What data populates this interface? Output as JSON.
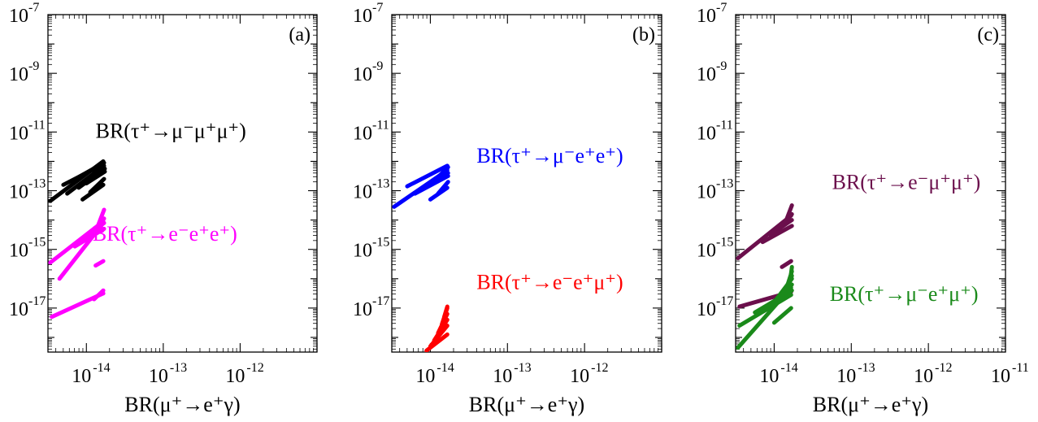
{
  "chart_data": [
    {
      "type": "line",
      "panel_label": "(a)",
      "xlabel": "BR(μ⁺→e⁺γ)",
      "ylabel": "",
      "x_log_range": [
        -14.5,
        -11.0
      ],
      "y_log_range": [
        -18.5,
        -7.0
      ],
      "x_tick_exponents": [
        -14,
        -13,
        -12,
        -11
      ],
      "x_tick_labels": [
        "10",
        "10",
        "10",
        "10"
      ],
      "x_tick_label_visible": [
        true,
        true,
        true,
        false
      ],
      "x_tick_exp_labels": [
        "-14",
        "-13",
        "-12",
        ""
      ],
      "x_tick_label_clipped": [
        false,
        false,
        false,
        true
      ],
      "y_tick_exponents": [
        -17,
        -15,
        -13,
        -11,
        -9,
        -7
      ],
      "y_tick_labels": [
        "10",
        "10",
        "10",
        "10",
        "10",
        "10"
      ],
      "y_tick_exp_labels": [
        "-17",
        "-15",
        "-13",
        "-11",
        "-9",
        "-7"
      ],
      "series": [
        {
          "name": "BR(τ⁺→μ⁻μ⁺μ⁺)",
          "color": "#000000",
          "segments": [
            [
              [
                -14.47,
                -13.35
              ],
              [
                -13.78,
                -12.0
              ]
            ],
            [
              [
                -14.25,
                -13.1
              ],
              [
                -13.77,
                -12.15
              ]
            ],
            [
              [
                -14.1,
                -12.9
              ],
              [
                -13.76,
                -12.25
              ]
            ],
            [
              [
                -14.0,
                -12.75
              ],
              [
                -13.76,
                -12.35
              ]
            ],
            [
              [
                -14.18,
                -12.65
              ],
              [
                -13.77,
                -12.05
              ]
            ],
            [
              [
                -14.3,
                -12.8
              ],
              [
                -13.78,
                -12.1
              ]
            ],
            [
              [
                -14.05,
                -13.3
              ],
              [
                -13.78,
                -12.8
              ]
            ],
            [
              [
                -13.95,
                -13.05
              ],
              [
                -13.77,
                -12.6
              ]
            ]
          ],
          "label_x": -13.88,
          "label_y": -11.2
        },
        {
          "name": "BR(τ⁺→e⁻e⁺e⁺)",
          "color": "#ff00ff",
          "segments": [
            [
              [
                -14.47,
                -15.45
              ],
              [
                -13.78,
                -14.05
              ]
            ],
            [
              [
                -14.15,
                -14.9
              ],
              [
                -13.77,
                -14.3
              ]
            ],
            [
              [
                -14.05,
                -14.65
              ],
              [
                -13.77,
                -14.1
              ]
            ],
            [
              [
                -13.95,
                -14.5
              ],
              [
                -13.77,
                -13.95
              ]
            ],
            [
              [
                -13.85,
                -14.2
              ],
              [
                -13.77,
                -13.65
              ]
            ],
            [
              [
                -14.35,
                -16.0
              ],
              [
                -13.78,
                -14.1
              ]
            ],
            [
              [
                -13.88,
                -15.55
              ],
              [
                -13.78,
                -15.4
              ]
            ],
            [
              [
                -14.45,
                -17.3
              ],
              [
                -13.78,
                -16.5
              ]
            ],
            [
              [
                -13.9,
                -16.7
              ],
              [
                -13.78,
                -16.4
              ]
            ]
          ],
          "label_x": -13.92,
          "label_y": -14.7
        }
      ]
    },
    {
      "type": "line",
      "panel_label": "(b)",
      "xlabel": "BR(μ⁺→e⁺γ)",
      "ylabel": "",
      "x_log_range": [
        -14.5,
        -11.0
      ],
      "y_log_range": [
        -18.5,
        -7.0
      ],
      "x_tick_exponents": [
        -14,
        -13,
        -12,
        -11
      ],
      "x_tick_labels": [
        "10",
        "10",
        "10",
        "10"
      ],
      "x_tick_label_visible": [
        true,
        true,
        true,
        false
      ],
      "x_tick_exp_labels": [
        "-14",
        "-13",
        "-12",
        ""
      ],
      "x_tick_label_clipped": [
        false,
        false,
        false,
        true
      ],
      "y_tick_exponents": [
        -17,
        -15,
        -13,
        -11,
        -9,
        -7
      ],
      "y_tick_labels": [
        "10",
        "10",
        "10",
        "10",
        "10",
        "10"
      ],
      "y_tick_exp_labels": [
        "-17",
        "-15",
        "-13",
        "-11",
        "-9",
        "-7"
      ],
      "series": [
        {
          "name": "BR(τ⁺→μ⁻e⁺e⁺)",
          "color": "#0000ff",
          "segments": [
            [
              [
                -14.47,
                -13.55
              ],
              [
                -13.78,
                -12.3
              ]
            ],
            [
              [
                -14.2,
                -13.1
              ],
              [
                -13.77,
                -12.5
              ]
            ],
            [
              [
                -14.1,
                -12.95
              ],
              [
                -13.77,
                -12.4
              ]
            ],
            [
              [
                -14.0,
                -12.8
              ],
              [
                -13.77,
                -12.2
              ]
            ],
            [
              [
                -14.3,
                -12.85
              ],
              [
                -13.78,
                -12.15
              ]
            ],
            [
              [
                -14.0,
                -13.3
              ],
              [
                -13.78,
                -12.9
              ]
            ],
            [
              [
                -13.9,
                -13.1
              ],
              [
                -13.77,
                -12.7
              ]
            ]
          ],
          "label_x": -13.4,
          "label_y": -12.05
        },
        {
          "name": "BR(τ⁺→e⁻e⁺μ⁺)",
          "color": "#ff0000",
          "segments": [
            [
              [
                -14.05,
                -18.45
              ],
              [
                -13.78,
                -17.9
              ]
            ],
            [
              [
                -14.0,
                -18.3
              ],
              [
                -13.78,
                -17.6
              ]
            ],
            [
              [
                -13.95,
                -18.1
              ],
              [
                -13.78,
                -17.4
              ]
            ],
            [
              [
                -13.9,
                -17.85
              ],
              [
                -13.78,
                -17.2
              ]
            ],
            [
              [
                -13.85,
                -17.55
              ],
              [
                -13.78,
                -17.0
              ]
            ],
            [
              [
                -13.82,
                -17.3
              ],
              [
                -13.78,
                -16.95
              ]
            ]
          ],
          "label_x": -13.4,
          "label_y": -16.35
        }
      ]
    },
    {
      "type": "line",
      "panel_label": "(c)",
      "xlabel": "BR(μ⁺→e⁺γ)",
      "ylabel": "",
      "x_log_range": [
        -14.5,
        -11.0
      ],
      "y_log_range": [
        -18.5,
        -7.0
      ],
      "x_tick_exponents": [
        -14,
        -13,
        -12,
        -11
      ],
      "x_tick_labels": [
        "10",
        "10",
        "10",
        "10"
      ],
      "x_tick_label_visible": [
        true,
        true,
        true,
        true
      ],
      "x_tick_exp_labels": [
        "-14",
        "-13",
        "-12",
        "-11"
      ],
      "x_tick_label_clipped": [
        false,
        false,
        false,
        false
      ],
      "y_tick_exponents": [
        -17,
        -15,
        -13,
        -11,
        -9,
        -7
      ],
      "y_tick_labels": [
        "10",
        "10",
        "10",
        "10",
        "10",
        "10"
      ],
      "y_tick_exp_labels": [
        "-17",
        "-15",
        "-13",
        "-11",
        "-9",
        "-7"
      ],
      "series": [
        {
          "name": "BR(τ⁺→e⁻μ⁺μ⁺)",
          "color": "#6b0f4c",
          "segments": [
            [
              [
                -14.47,
                -15.3
              ],
              [
                -13.78,
                -13.85
              ]
            ],
            [
              [
                -14.15,
                -14.75
              ],
              [
                -13.77,
                -14.2
              ]
            ],
            [
              [
                -14.05,
                -14.5
              ],
              [
                -13.77,
                -14.0
              ]
            ],
            [
              [
                -13.95,
                -14.3
              ],
              [
                -13.77,
                -13.8
              ]
            ],
            [
              [
                -13.85,
                -14.05
              ],
              [
                -13.77,
                -13.5
              ]
            ],
            [
              [
                -13.9,
                -15.6
              ],
              [
                -13.78,
                -15.4
              ]
            ],
            [
              [
                -14.45,
                -16.95
              ],
              [
                -13.78,
                -16.45
              ]
            ]
          ],
          "label_x": -13.25,
          "label_y": -12.95
        },
        {
          "name": "BR(τ⁺→μ⁻e⁺μ⁺)",
          "color": "#1a8a1a",
          "segments": [
            [
              [
                -14.47,
                -18.35
              ],
              [
                -13.78,
                -16.3
              ]
            ],
            [
              [
                -14.45,
                -17.6
              ],
              [
                -13.78,
                -16.55
              ]
            ],
            [
              [
                -14.25,
                -17.15
              ],
              [
                -13.77,
                -16.4
              ]
            ],
            [
              [
                -14.1,
                -17.05
              ],
              [
                -13.77,
                -16.2
              ]
            ],
            [
              [
                -14.0,
                -16.8
              ],
              [
                -13.77,
                -16.0
              ]
            ],
            [
              [
                -13.9,
                -16.6
              ],
              [
                -13.77,
                -15.9
              ]
            ],
            [
              [
                -13.85,
                -16.4
              ],
              [
                -13.77,
                -15.75
              ]
            ],
            [
              [
                -13.8,
                -16.2
              ],
              [
                -13.77,
                -15.6
              ]
            ],
            [
              [
                -14.0,
                -17.5
              ],
              [
                -13.78,
                -17.0
              ]
            ]
          ],
          "label_x": -13.28,
          "label_y": -16.75
        }
      ]
    }
  ]
}
